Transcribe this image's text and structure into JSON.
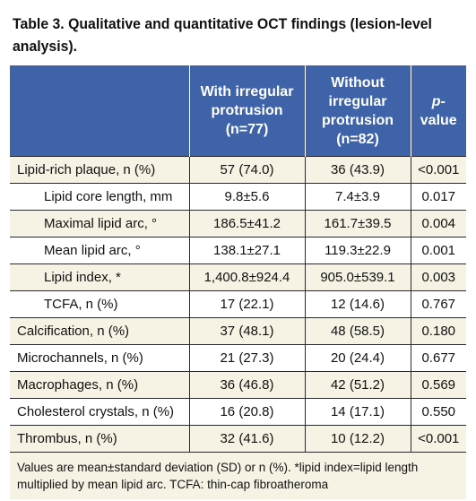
{
  "caption": "Table 3. Qualitative and quantitative OCT findings (lesion-level analysis).",
  "headers": {
    "col0": "",
    "col1": "With irregular protrusion (n=77)",
    "col2": "Without irregular protrusion (n=82)",
    "col3_italic": "p",
    "col3_rest": "-value"
  },
  "rows": [
    {
      "label": "Lipid-rich plaque, n (%)",
      "with": "57 (74.0)",
      "without": "36 (43.9)",
      "p": "<0.001"
    },
    {
      "label": "Lipid core length, mm",
      "with": "9.8±5.6",
      "without": "7.4±3.9",
      "p": "0.017"
    },
    {
      "label": "Maximal lipid arc, °",
      "with": "186.5±41.2",
      "without": "161.7±39.5",
      "p": "0.004"
    },
    {
      "label": "Mean lipid arc, °",
      "with": "138.1±27.1",
      "without": "119.3±22.9",
      "p": "0.001"
    },
    {
      "label": "Lipid index, *",
      "with": "1,400.8±924.4",
      "without": "905.0±539.1",
      "p": "0.003"
    },
    {
      "label": "TCFA, n (%)",
      "with": "17 (22.1)",
      "without": "12 (14.6)",
      "p": "0.767"
    },
    {
      "label": "Calcification, n (%)",
      "with": "37 (48.1)",
      "without": "48 (58.5)",
      "p": "0.180"
    },
    {
      "label": "Microchannels, n (%)",
      "with": "21 (27.3)",
      "without": "20 (24.4)",
      "p": "0.677"
    },
    {
      "label": "Macrophages, n (%)",
      "with": "36 (46.8)",
      "without": "42 (51.2)",
      "p": "0.569"
    },
    {
      "label": "Cholesterol crystals, n (%)",
      "with": "16 (20.8)",
      "without": "14 (17.1)",
      "p": "0.550"
    },
    {
      "label": "Thrombus, n (%)",
      "with": "32 (41.6)",
      "without": "10 (12.2)",
      "p": "<0.001"
    }
  ],
  "footnote": "Values are mean±standard deviation (SD) or n (%). *lipid index=lipid length multiplied by mean lipid arc. TCFA: thin-cap fibroatheroma",
  "colors": {
    "header_bg": "#3f63a8",
    "stripe_bg": "#f6f3e4"
  }
}
